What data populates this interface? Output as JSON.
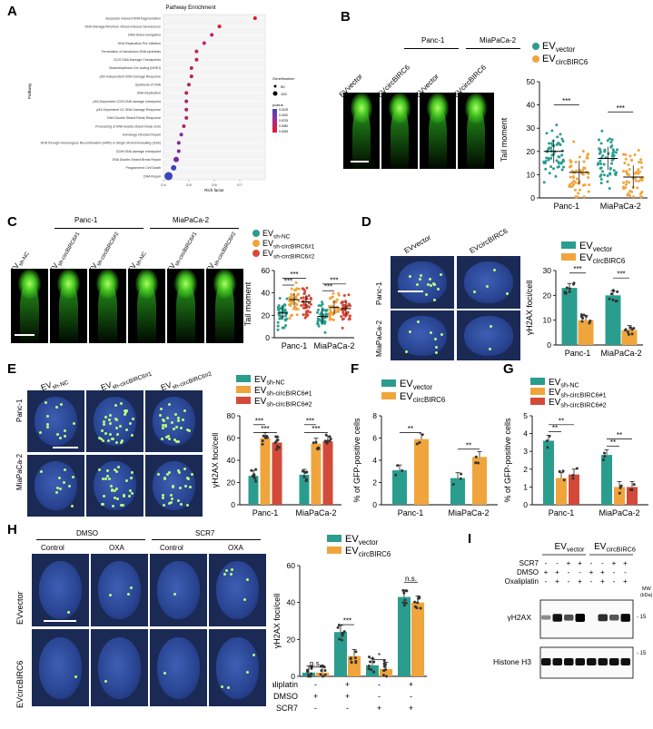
{
  "colors": {
    "teal": "#2a9d8f",
    "orange": "#f0a53c",
    "red": "#d44a3a",
    "green_comet": "#5ecb2c",
    "nucleus_blue": "#2a4694"
  },
  "panel_labels": {
    "A": "A",
    "B": "B",
    "C": "C",
    "D": "D",
    "E": "E",
    "F": "F",
    "G": "G",
    "H": "H",
    "I": "I"
  },
  "A": {
    "title": "Pathway Enrichment",
    "ylabel": "Pathway",
    "xlabel": "Rich factor",
    "xticks": [
      "0.4",
      "0.5",
      "0.6",
      "0.7"
    ],
    "pathways": [
      "Apoptosis induced DNA fragmentation",
      "DNA Damage/Telomere Stress Induced Senescence",
      "DNA strand elongation",
      "DNA Replication Pre-Initiation",
      "Termination of translesion DNA synthesis",
      "G1/S DNA Damage Checkpoints",
      "Nucleotidyltrans Cre-coding (NHEJ)",
      "p53-Independent DNA Damage Response",
      "Synthesis of DNA",
      "DNA Replication",
      "p53-Dependent G1/S DNA damage checkpoint",
      "p53-Dependent G1 DNA Damage Response",
      "DNA Double Strand Break Response",
      "Processing of DNA double-strand break ends",
      "Homology Directed Repair",
      "HDR through Homologous Recombination (HRR) or Single Strand Annealing (SSA)",
      "G2/M DNA damage checkpoint",
      "DNA Double-Strand Break Repair",
      "Programmed Cell Death",
      "DNA Repair"
    ],
    "rich": [
      0.76,
      0.62,
      0.59,
      0.56,
      0.53,
      0.53,
      0.51,
      0.51,
      0.5,
      0.49,
      0.49,
      0.49,
      0.49,
      0.48,
      0.47,
      0.46,
      0.46,
      0.45,
      0.44,
      0.42
    ],
    "gene_legend_title": "GeneNumber",
    "gene_legend": [
      "50",
      "100"
    ],
    "pvalue_title": "pvalue",
    "pvalue_ticks": [
      "0.0125",
      "0.0100",
      "0.0075",
      "0.0050",
      "0.0025"
    ]
  },
  "B": {
    "cell_lines": [
      "Panc-1",
      "MiaPaCa-2"
    ],
    "images": [
      "EVvector",
      "EVcircBIRC6",
      "EVvector",
      "EVcircBIRC6"
    ],
    "legend": [
      "EVvector",
      "EVcircBIRC6"
    ],
    "ylabel": "Tail moment",
    "sig": [
      "***",
      "***"
    ],
    "chart_data": {
      "type": "scatter",
      "categories": [
        "Panc-1",
        "MiaPaCa-2"
      ],
      "series": [
        {
          "name": "EVvector",
          "values": [
            20,
            17
          ]
        },
        {
          "name": "EVcircBIRC6",
          "values": [
            11,
            9
          ]
        }
      ],
      "ylim": [
        0,
        50
      ],
      "yticks": [
        0,
        10,
        20,
        30,
        40,
        50
      ],
      "ylabel": "Tail moment"
    }
  },
  "C": {
    "cell_lines": [
      "Panc-1",
      "MiaPaCa-2"
    ],
    "images": [
      "EVsh-NC",
      "EVsh-circBIRC6#1",
      "EVsh-circBIRC6#2",
      "EVsh-NC",
      "EVsh-circBIRC6#1",
      "EVsh-circBIRC6#2"
    ],
    "legend": [
      "EVsh-NC",
      "EVsh-circBIRC6#1",
      "EVsh-circBIRC6#2"
    ],
    "sig": [
      "***",
      "***",
      "***",
      "***"
    ],
    "chart_data": {
      "type": "scatter",
      "categories": [
        "Panc-1",
        "MiaPaCa-2"
      ],
      "series": [
        {
          "name": "EVsh-NC",
          "values": [
            22,
            19
          ]
        },
        {
          "name": "EVsh-circBIRC6#1",
          "values": [
            34,
            27
          ]
        },
        {
          "name": "EVsh-circBIRC6#2",
          "values": [
            32,
            26
          ]
        }
      ],
      "ylim": [
        0,
        60
      ],
      "yticks": [
        0,
        20,
        40,
        60
      ],
      "ylabel": "Tail moment"
    }
  },
  "D": {
    "row_labels": [
      "Panc-1",
      "MiaPaCa-2"
    ],
    "col_labels": [
      "EVvector",
      "EVcircBIRC6"
    ],
    "legend": [
      "EVvector",
      "EVcircBIRC6"
    ],
    "sig": [
      "***",
      "***"
    ],
    "chart_data": {
      "type": "bar",
      "categories": [
        "Panc-1",
        "MiaPaCa-2"
      ],
      "series": [
        {
          "name": "EVvector",
          "values": [
            23,
            20
          ]
        },
        {
          "name": "EVcircBIRC6",
          "values": [
            10,
            6
          ]
        }
      ],
      "ylim": [
        0,
        30
      ],
      "yticks": [
        0,
        10,
        20,
        30
      ],
      "ylabel": "γH2AX foci/cell"
    }
  },
  "E": {
    "row_labels": [
      "Panc-1",
      "MiaPaCa-2"
    ],
    "col_labels": [
      "EVsh-NC",
      "EVsh-circBIRC6#1",
      "EVsh-circBIRC6#2"
    ],
    "legend": [
      "EVsh-NC",
      "EVsh-circBIRC6#1",
      "EVsh-circBIRC6#2"
    ],
    "sig": [
      "***",
      "***",
      "***",
      "***"
    ],
    "chart_data": {
      "type": "bar",
      "categories": [
        "Panc-1",
        "MiaPaCa-2"
      ],
      "series": [
        {
          "name": "EVsh-NC",
          "values": [
            26,
            27
          ]
        },
        {
          "name": "EVsh-circBIRC6#1",
          "values": [
            60,
            55
          ]
        },
        {
          "name": "EVsh-circBIRC6#2",
          "values": [
            56,
            57
          ]
        }
      ],
      "ylim": [
        0,
        80
      ],
      "yticks": [
        0,
        20,
        40,
        60,
        80
      ],
      "ylabel": "γH2AX foci/cell"
    }
  },
  "F": {
    "legend": [
      "EVvector",
      "EVcircBIRC6"
    ],
    "sig": [
      "**",
      "**"
    ],
    "chart_data": {
      "type": "bar",
      "categories": [
        "Panc-1",
        "MiaPaCa-2"
      ],
      "series": [
        {
          "name": "EVvector",
          "values": [
            3.1,
            2.4
          ]
        },
        {
          "name": "EVcircBIRC6",
          "values": [
            5.9,
            4.3
          ]
        }
      ],
      "ylim": [
        0,
        8
      ],
      "yticks": [
        0,
        2,
        4,
        6,
        8
      ],
      "ylabel": "% of GFP-positive cells"
    }
  },
  "G": {
    "legend": [
      "EVsh-NC",
      "EVsh-circBIRC6#1",
      "EVsh-circBIRC6#2"
    ],
    "sig": [
      "**",
      "**",
      "**",
      "**"
    ],
    "chart_data": {
      "type": "bar",
      "categories": [
        "Panc-1",
        "MiaPaCa-2"
      ],
      "series": [
        {
          "name": "EVsh-NC",
          "values": [
            3.6,
            2.8
          ]
        },
        {
          "name": "EVsh-circBIRC6#1",
          "values": [
            1.5,
            1.0
          ]
        },
        {
          "name": "EVsh-circBIRC6#2",
          "values": [
            1.7,
            1.0
          ]
        }
      ],
      "ylim": [
        0,
        5
      ],
      "yticks": [
        0,
        1,
        2,
        3,
        4,
        5
      ],
      "ylabel": "% of GFP-positive cells"
    }
  },
  "H": {
    "groups": [
      "DMSO",
      "SCR7"
    ],
    "conds": [
      "Control",
      "OXA",
      "Control",
      "OXA"
    ],
    "row_labels": [
      "EVvector",
      "EVcircBIRC6"
    ],
    "legend": [
      "EVvector",
      "EVcircBIRC6"
    ],
    "sig": [
      "n.s.",
      "***",
      "*",
      "n.s."
    ],
    "treat_rows": [
      {
        "name": "Oxaliplatin",
        "values": [
          "-",
          "+",
          "-",
          "+"
        ]
      },
      {
        "name": "DMSO",
        "values": [
          "+",
          "+",
          "-",
          "-"
        ]
      },
      {
        "name": "SCR7",
        "values": [
          "-",
          "-",
          "+",
          "+"
        ]
      }
    ],
    "chart_data": {
      "type": "bar",
      "categories": [
        "DMSO",
        "DMSO+Oxaliplatin",
        "SCR7",
        "SCR7+Oxaliplatin"
      ],
      "series": [
        {
          "name": "EVvector",
          "values": [
            2,
            24,
            6,
            43
          ]
        },
        {
          "name": "EVcircBIRC6",
          "values": [
            2,
            11,
            4,
            40
          ]
        }
      ],
      "ylim": [
        0,
        60
      ],
      "yticks": [
        0,
        20,
        40,
        60
      ],
      "ylabel": "γH2AX foci/cell"
    }
  },
  "I": {
    "groups": [
      "EVvector",
      "EVcircBIRC6"
    ],
    "treat_rows": [
      {
        "name": "SCR7",
        "values": [
          "-",
          "-",
          "+",
          "+",
          "-",
          "-",
          "+",
          "+"
        ]
      },
      {
        "name": "DMSO",
        "values": [
          "+",
          "+",
          "-",
          "-",
          "+",
          "+",
          "-",
          "-"
        ]
      },
      {
        "name": "Oxaliplatin",
        "values": [
          "-",
          "+",
          "-",
          "+",
          "-",
          "+",
          "-",
          "+"
        ]
      }
    ],
    "mw_label": "MW (kDa)",
    "bands": [
      "γH2AX",
      "Histone H3"
    ],
    "mw": [
      "15",
      "15"
    ]
  }
}
